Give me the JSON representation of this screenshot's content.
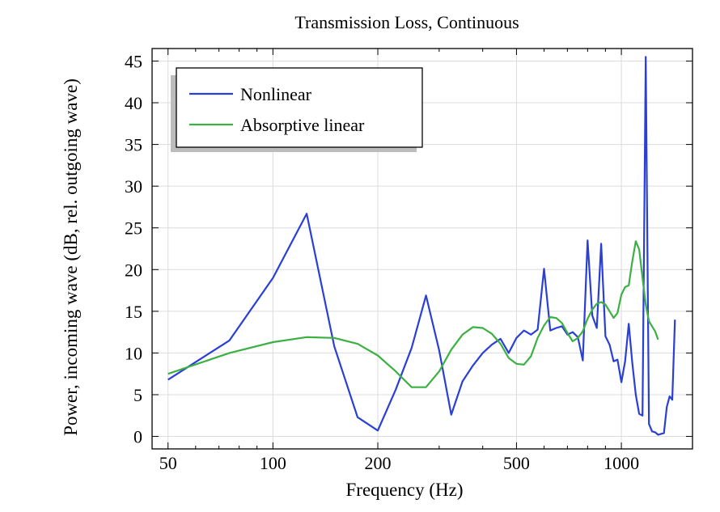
{
  "chart_data": {
    "type": "line",
    "title": "Transmission Loss, Continuous",
    "xlabel": "Frequency (Hz)",
    "ylabel": "Power, incoming wave (dB, rel. outgoing wave)",
    "xscale": "log",
    "xlim": [
      45,
      1600
    ],
    "ylim": [
      -1.5,
      46.5
    ],
    "xticks": [
      {
        "value": 50,
        "label": "50"
      },
      {
        "value": 100,
        "label": "100"
      },
      {
        "value": 200,
        "label": "200"
      },
      {
        "value": 500,
        "label": "500"
      },
      {
        "value": 1000,
        "label": "1000"
      }
    ],
    "yticks": [
      {
        "value": 0,
        "label": "0"
      },
      {
        "value": 5,
        "label": "5"
      },
      {
        "value": 10,
        "label": "10"
      },
      {
        "value": 15,
        "label": "15"
      },
      {
        "value": 20,
        "label": "20"
      },
      {
        "value": 25,
        "label": "25"
      },
      {
        "value": 30,
        "label": "30"
      },
      {
        "value": 35,
        "label": "35"
      },
      {
        "value": 40,
        "label": "40"
      },
      {
        "value": 45,
        "label": "45"
      }
    ],
    "grid": true,
    "legend_position": "top-left",
    "series": [
      {
        "name": "Nonlinear",
        "color": "#2a3fd6",
        "x": [
          50,
          75,
          100,
          125,
          150,
          175,
          200,
          225,
          250,
          275,
          300,
          325,
          350,
          375,
          400,
          425,
          450,
          475,
          500,
          525,
          550,
          575,
          600,
          625,
          650,
          675,
          700,
          725,
          750,
          775,
          800,
          825,
          850,
          875,
          900,
          925,
          950,
          975,
          1000,
          1025,
          1050,
          1075,
          1100,
          1125,
          1150,
          1175,
          1200,
          1225,
          1250,
          1275,
          1300,
          1325,
          1350,
          1375,
          1400,
          1425,
          1450,
          1475,
          1500
        ],
        "y": [
          6.8,
          11.5,
          19.0,
          26.7,
          10.8,
          2.3,
          0.7,
          5.6,
          10.6,
          16.9,
          10.3,
          2.6,
          6.6,
          8.5,
          10.0,
          11.0,
          11.7,
          10.0,
          11.8,
          12.7,
          12.2,
          12.8,
          20.1,
          12.7,
          13.0,
          13.2,
          12.2,
          12.5,
          11.9,
          9.1,
          23.5,
          14.5,
          13.0,
          23.1,
          12.0,
          11.0,
          9.0,
          9.2,
          6.5,
          9.0,
          13.5,
          8.8,
          5.0,
          2.7,
          2.5,
          45.5,
          1.5,
          0.6,
          0.5,
          0.2,
          0.3,
          0.4,
          3.5,
          4.8,
          4.4,
          14.0,
          null,
          null,
          null
        ]
      },
      {
        "name": "Absorptive linear",
        "color": "#3cb043",
        "x": [
          50,
          75,
          100,
          125,
          150,
          175,
          200,
          225,
          250,
          275,
          300,
          325,
          350,
          375,
          400,
          425,
          450,
          475,
          500,
          525,
          550,
          575,
          600,
          625,
          650,
          675,
          700,
          725,
          750,
          775,
          800,
          825,
          850,
          875,
          900,
          925,
          950,
          975,
          1000,
          1025,
          1050,
          1075,
          1100,
          1125,
          1150,
          1175,
          1200,
          1225,
          1250,
          1275,
          1300,
          1325,
          1350,
          1375,
          1400,
          1425,
          1450,
          1475,
          1500
        ],
        "y": [
          7.5,
          10.0,
          11.3,
          11.9,
          11.8,
          11.1,
          9.7,
          7.8,
          5.9,
          5.9,
          7.8,
          10.4,
          12.2,
          13.1,
          13.0,
          12.3,
          11.1,
          9.4,
          8.7,
          8.6,
          9.6,
          11.8,
          13.3,
          14.3,
          14.2,
          13.6,
          12.4,
          11.4,
          11.8,
          12.6,
          14.1,
          15.2,
          15.9,
          16.1,
          15.8,
          15.0,
          14.2,
          14.8,
          17.0,
          17.9,
          18.1,
          21.0,
          23.4,
          22.4,
          19.0,
          15.8,
          13.8,
          13.2,
          12.6,
          11.6,
          null,
          null,
          null,
          null,
          null,
          null,
          null,
          null,
          null
        ]
      }
    ]
  }
}
